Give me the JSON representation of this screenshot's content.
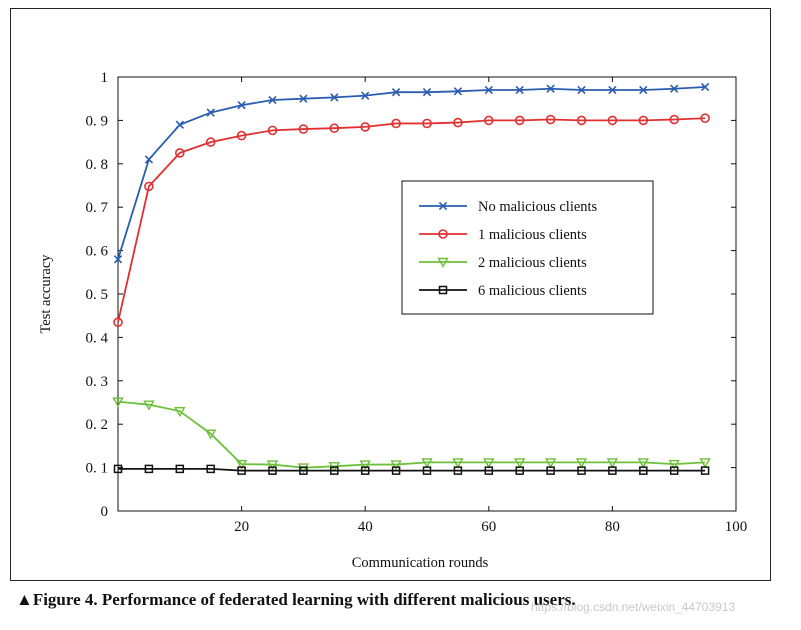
{
  "chart_data": {
    "type": "line",
    "title": "",
    "xlabel": "Communication rounds",
    "ylabel": "Test accuracy",
    "xlim": [
      0,
      100
    ],
    "ylim": [
      0,
      1
    ],
    "xticks": [
      20,
      40,
      60,
      80,
      100
    ],
    "yticks": [
      0,
      0.1,
      0.2,
      0.3,
      0.4,
      0.5,
      0.6,
      0.7,
      0.8,
      0.9,
      1
    ],
    "ytick_labels": [
      "0",
      "0. 1",
      "0. 2",
      "0. 3",
      "0. 4",
      "0. 5",
      "0. 6",
      "0. 7",
      "0. 8",
      "0. 9",
      "1"
    ],
    "legend_position": "center-right",
    "x": [
      0,
      5,
      10,
      15,
      20,
      25,
      30,
      35,
      40,
      45,
      50,
      55,
      60,
      65,
      70,
      75,
      80,
      85,
      90,
      95
    ],
    "series": [
      {
        "name": "No malicious clients",
        "color": "#2a5db0",
        "marker": "x",
        "values": [
          0.58,
          0.81,
          0.89,
          0.918,
          0.935,
          0.947,
          0.95,
          0.953,
          0.957,
          0.965,
          0.965,
          0.967,
          0.97,
          0.97,
          0.973,
          0.97,
          0.97,
          0.97,
          0.973,
          0.977
        ]
      },
      {
        "name": "1 malicious clients",
        "color": "#e03030",
        "marker": "o",
        "values": [
          0.435,
          0.748,
          0.825,
          0.85,
          0.865,
          0.877,
          0.88,
          0.882,
          0.885,
          0.893,
          0.893,
          0.895,
          0.9,
          0.9,
          0.902,
          0.9,
          0.9,
          0.9,
          0.902,
          0.905
        ]
      },
      {
        "name": "2 malicious clients",
        "color": "#6cc03a",
        "marker": "v",
        "values": [
          0.252,
          0.245,
          0.23,
          0.178,
          0.108,
          0.107,
          0.1,
          0.103,
          0.107,
          0.107,
          0.112,
          0.112,
          0.112,
          0.112,
          0.112,
          0.112,
          0.112,
          0.112,
          0.108,
          0.112
        ]
      },
      {
        "name": "6 malicious clients",
        "color": "#111111",
        "marker": "s",
        "values": [
          0.097,
          0.097,
          0.097,
          0.097,
          0.093,
          0.093,
          0.093,
          0.093,
          0.093,
          0.093,
          0.093,
          0.093,
          0.093,
          0.093,
          0.093,
          0.093,
          0.093,
          0.093,
          0.093,
          0.093
        ]
      }
    ]
  },
  "caption": "▲Figure 4. Performance of federated learning with different malicious users.",
  "watermark": "https://blog.csdn.net/weixin_44703913"
}
